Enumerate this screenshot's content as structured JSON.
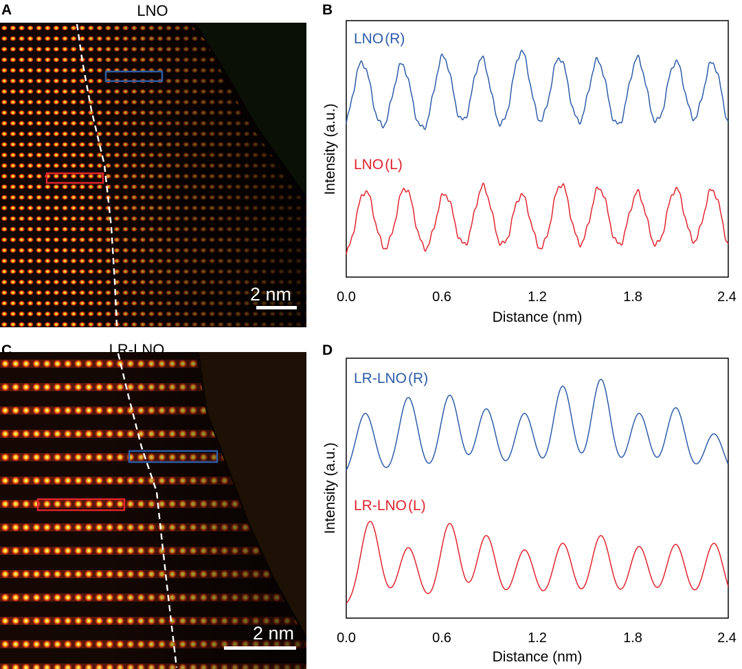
{
  "panels": [
    {
      "letter": "A",
      "title": "LNO",
      "scale_bar": "2 nm",
      "image": {
        "colors": {
          "bright": "#ffd21a",
          "mid": "#d23410",
          "dark": "#120604"
        }
      }
    },
    {
      "letter": "B",
      "chart_data": {
        "type": "line",
        "xlabel": "Distance (nm)",
        "ylabel": "Intensity (a.u.)",
        "xlim": [
          0.0,
          2.4
        ],
        "x_ticks": [
          "0.0",
          "0.6",
          "1.2",
          "1.8",
          "2.4"
        ],
        "grid": false,
        "series": [
          {
            "name": "LNO",
            "tag": "(R)",
            "color": "#2d5ca8",
            "peak_positions_nm": [
              0.1,
              0.35,
              0.61,
              0.85,
              1.1,
              1.34,
              1.58,
              1.83,
              2.07,
              2.3
            ],
            "peak_heights": [
              0.82,
              0.8,
              0.88,
              0.86,
              0.93,
              0.87,
              0.84,
              0.86,
              0.83,
              0.82
            ]
          },
          {
            "name": "LNO",
            "tag": "(L)",
            "color": "#e0242c",
            "peak_positions_nm": [
              0.12,
              0.37,
              0.62,
              0.86,
              1.1,
              1.35,
              1.59,
              1.83,
              2.07,
              2.3
            ],
            "peak_heights": [
              0.74,
              0.77,
              0.71,
              0.78,
              0.7,
              0.81,
              0.77,
              0.72,
              0.76,
              0.75
            ]
          }
        ]
      }
    },
    {
      "letter": "C",
      "title": "LR-LNO",
      "scale_bar": "2 nm",
      "image": {
        "colors": {
          "bright": "#ffd21a",
          "mid": "#c8321a",
          "dark": "#150804"
        }
      }
    },
    {
      "letter": "D",
      "chart_data": {
        "type": "line",
        "xlabel": "Distance (nm)",
        "ylabel": "Intensity (a.u.)",
        "xlim": [
          0.0,
          2.4
        ],
        "x_ticks": [
          "0.0",
          "0.6",
          "1.2",
          "1.8",
          "2.4"
        ],
        "grid": false,
        "series": [
          {
            "name": "LR-LNO",
            "tag": "(R)",
            "color": "#2d5ca8",
            "peak_positions_nm": [
              0.12,
              0.39,
              0.65,
              0.88,
              1.12,
              1.36,
              1.6,
              1.84,
              2.07,
              2.31
            ],
            "peak_heights": [
              0.58,
              0.72,
              0.74,
              0.62,
              0.58,
              0.82,
              0.88,
              0.58,
              0.63,
              0.4
            ]
          },
          {
            "name": "LR-LNO",
            "tag": "(L)",
            "color": "#e0242c",
            "peak_positions_nm": [
              0.15,
              0.39,
              0.65,
              0.88,
              1.12,
              1.36,
              1.6,
              1.84,
              2.07,
              2.31
            ],
            "peak_heights": [
              0.78,
              0.54,
              0.76,
              0.65,
              0.52,
              0.58,
              0.65,
              0.55,
              0.57,
              0.58
            ]
          }
        ]
      }
    }
  ]
}
